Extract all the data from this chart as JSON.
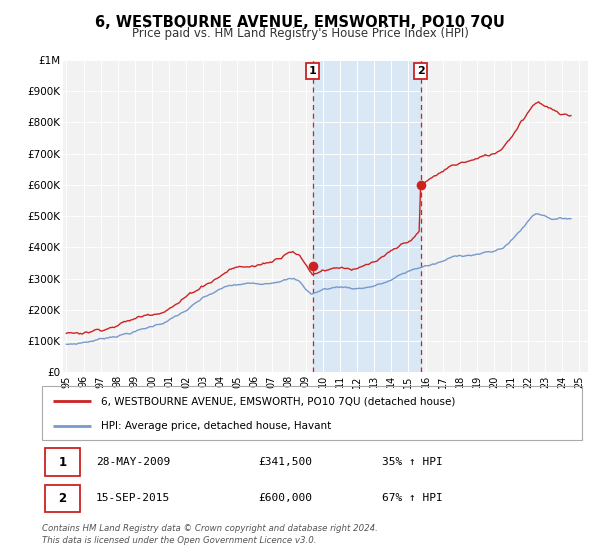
{
  "title": "6, WESTBOURNE AVENUE, EMSWORTH, PO10 7QU",
  "subtitle": "Price paid vs. HM Land Registry's House Price Index (HPI)",
  "title_fontsize": 10.5,
  "subtitle_fontsize": 8.5,
  "background_color": "#ffffff",
  "plot_bg_color": "#f2f2f2",
  "grid_color": "#ffffff",
  "red_line_color": "#cc2222",
  "blue_line_color": "#7799cc",
  "highlight_bg_color": "#dae8f5",
  "sale1_date_num": 2009.41,
  "sale1_price": 341500,
  "sale1_label": "1",
  "sale2_date_num": 2015.71,
  "sale2_price": 600000,
  "sale2_label": "2",
  "ylim": [
    0,
    1000000
  ],
  "xlim": [
    1994.8,
    2025.5
  ],
  "yticks": [
    0,
    100000,
    200000,
    300000,
    400000,
    500000,
    600000,
    700000,
    800000,
    900000,
    1000000
  ],
  "ytick_labels": [
    "£0",
    "£100K",
    "£200K",
    "£300K",
    "£400K",
    "£500K",
    "£600K",
    "£700K",
    "£800K",
    "£900K",
    "£1M"
  ],
  "xtick_labels": [
    "95",
    "96",
    "97",
    "98",
    "99",
    "00",
    "01",
    "02",
    "03",
    "04",
    "05",
    "06",
    "07",
    "08",
    "09",
    "10",
    "11",
    "12",
    "13",
    "14",
    "15",
    "16",
    "17",
    "18",
    "19",
    "20",
    "21",
    "22",
    "23",
    "24",
    "25"
  ],
  "xticks": [
    1995,
    1996,
    1997,
    1998,
    1999,
    2000,
    2001,
    2002,
    2003,
    2004,
    2005,
    2006,
    2007,
    2008,
    2009,
    2010,
    2011,
    2012,
    2013,
    2014,
    2015,
    2016,
    2017,
    2018,
    2019,
    2020,
    2021,
    2022,
    2023,
    2024,
    2025
  ],
  "legend_line1": "6, WESTBOURNE AVENUE, EMSWORTH, PO10 7QU (detached house)",
  "legend_line2": "HPI: Average price, detached house, Havant",
  "table_row1": [
    "1",
    "28-MAY-2009",
    "£341,500",
    "35% ↑ HPI"
  ],
  "table_row2": [
    "2",
    "15-SEP-2015",
    "£600,000",
    "67% ↑ HPI"
  ],
  "footer": "Contains HM Land Registry data © Crown copyright and database right 2024.\nThis data is licensed under the Open Government Licence v3.0."
}
